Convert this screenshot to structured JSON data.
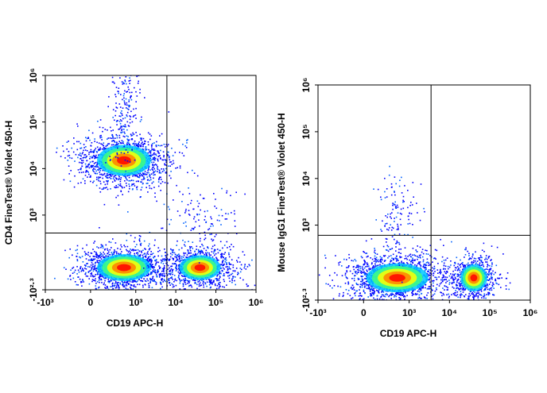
{
  "chart_data": [
    {
      "type": "density",
      "x_label": "CD19 APC-H",
      "y_label": "CD4  FineTest® Violet 450-H",
      "x_scale": "biexponential",
      "y_scale": "biexponential",
      "xlim": [
        -1000,
        1000000
      ],
      "ylim": [
        -199.5,
        1000000
      ],
      "xticks": [
        {
          "value": -1000,
          "label": "-10³"
        },
        0,
        {
          "value": 1000,
          "label": "10³"
        },
        {
          "value": 10000,
          "label": "10⁴"
        },
        {
          "value": 100000,
          "label": "10⁵"
        },
        {
          "value": 1000000,
          "label": "10⁶"
        }
      ],
      "yticks": [
        {
          "value": -199.5,
          "label": "-10²·³"
        },
        {
          "value": 1000,
          "label": "10³"
        },
        {
          "value": 10000,
          "label": "10⁴"
        },
        {
          "value": 100000,
          "label": "10⁵"
        },
        {
          "value": 1000000,
          "label": "10⁶"
        }
      ],
      "clusters": {
        "x": [
          500,
          500,
          40000,
          40000,
          500
        ],
        "y": [
          15000,
          0,
          0,
          1000,
          200000
        ]
      },
      "gate": {
        "x": 6000,
        "y": 400
      }
    },
    {
      "type": "density",
      "x_label": "CD19 APC-H",
      "y_label": "Mouse IgG1  FineTest® Violet 450-H",
      "x_scale": "biexponential",
      "y_scale": "biexponential",
      "xlim": [
        -1000,
        1000000
      ],
      "ylim": [
        -199.5,
        1000000
      ],
      "xticks": [
        {
          "value": -1000,
          "label": "-10³"
        },
        0,
        {
          "value": 1000,
          "label": "10³"
        },
        {
          "value": 10000,
          "label": "10⁴"
        },
        {
          "value": 100000,
          "label": "10⁵"
        },
        {
          "value": 1000000,
          "label": "10⁶"
        }
      ],
      "yticks": [
        {
          "value": -199.5,
          "label": "-10²·³"
        },
        {
          "value": 1000,
          "label": "10³"
        },
        {
          "value": 10000,
          "label": "10⁴"
        },
        {
          "value": 100000,
          "label": "10⁵"
        },
        {
          "value": 1000000,
          "label": "10⁶"
        }
      ],
      "clusters": {
        "x": [
          500,
          40000,
          500
        ],
        "y": [
          0,
          0,
          1500
        ]
      },
      "gate": {
        "x": 3500,
        "y": 600
      }
    }
  ]
}
